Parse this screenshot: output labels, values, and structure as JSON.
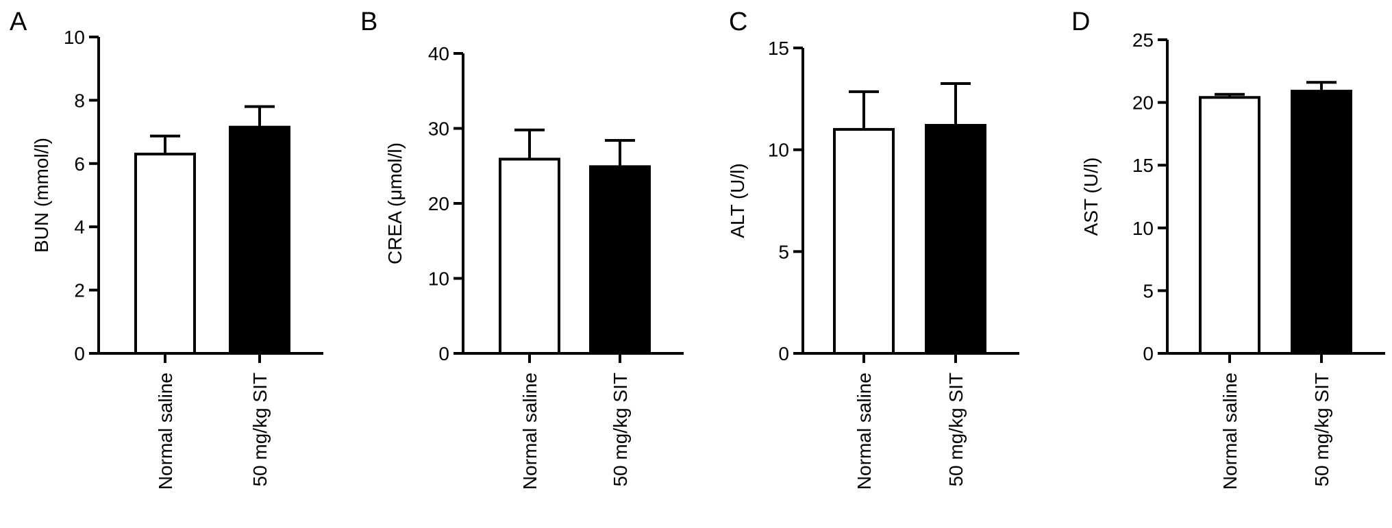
{
  "chart_data": [
    {
      "type": "bar",
      "panel_label": "A",
      "categories": [
        "Normal saline",
        "50 mg/kg SIT"
      ],
      "values": [
        6.3,
        7.15
      ],
      "errors": [
        0.57,
        0.65
      ],
      "bar_fills": [
        "#ffffff",
        "#000000"
      ],
      "ylabel": "BUN (mmol/l)",
      "ylim": [
        0,
        10
      ],
      "yticks": [
        "0",
        "2",
        "4",
        "6",
        "8",
        "10"
      ],
      "grid": false
    },
    {
      "type": "bar",
      "panel_label": "B",
      "categories": [
        "Normal saline",
        "50 mg/kg SIT"
      ],
      "values": [
        25.9,
        24.9
      ],
      "errors": [
        3.9,
        3.5
      ],
      "bar_fills": [
        "#ffffff",
        "#000000"
      ],
      "ylabel": "CREA (μmol/l)",
      "ylim": [
        0,
        40
      ],
      "yticks": [
        "0",
        "10",
        "20",
        "30",
        "40"
      ],
      "grid": false
    },
    {
      "type": "bar",
      "panel_label": "C",
      "categories": [
        "Normal saline",
        "50 mg/kg SIT"
      ],
      "values": [
        11.0,
        11.2
      ],
      "errors": [
        1.85,
        2.05
      ],
      "bar_fills": [
        "#ffffff",
        "#000000"
      ],
      "ylabel": "ALT (U/l)",
      "ylim": [
        0,
        15
      ],
      "yticks": [
        "0",
        "5",
        "10",
        "15"
      ],
      "grid": false
    },
    {
      "type": "bar",
      "panel_label": "D",
      "categories": [
        "Normal saline",
        "50 mg/kg SIT"
      ],
      "values": [
        20.4,
        20.9
      ],
      "errors": [
        0.25,
        0.7
      ],
      "bar_fills": [
        "#ffffff",
        "#000000"
      ],
      "ylabel": "AST (U/l)",
      "ylim": [
        0,
        25
      ],
      "yticks": [
        "0",
        "5",
        "10",
        "15",
        "20",
        "25"
      ],
      "grid": false
    }
  ]
}
